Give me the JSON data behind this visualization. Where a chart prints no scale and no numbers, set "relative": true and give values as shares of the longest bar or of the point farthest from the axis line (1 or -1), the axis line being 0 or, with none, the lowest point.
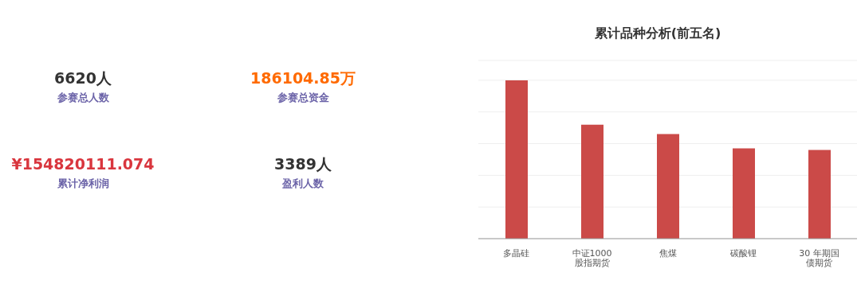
{
  "chart_data": [
    {
      "type": "other",
      "annotations": [
        "6620人",
        "参赛总人数",
        "186104.85万",
        "参赛总资金",
        "¥154820111.074",
        "累计净利润",
        "3389人",
        "盈利人数"
      ]
    },
    {
      "type": "bar",
      "title": "累计品种分析(前五名)",
      "relative": true,
      "categories": [
        "多晶硅",
        "中证1000股指期货",
        "焦煤",
        "碳酸锂",
        "30 年期国债期货"
      ],
      "values": [
        1,
        0.72,
        0.66,
        0.57,
        0.56
      ],
      "color": "#cb4a48",
      "grid": "y"
    }
  ]
}
